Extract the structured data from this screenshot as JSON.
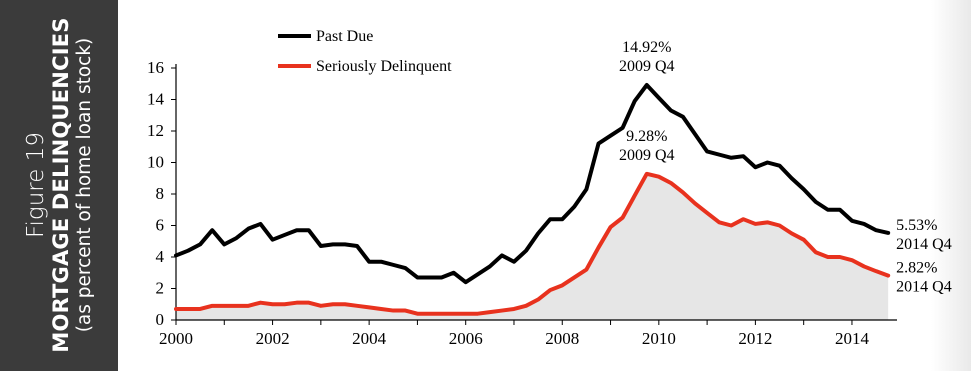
{
  "sidebar": {
    "figure_label": "Figure 19",
    "title": "MORTGAGE DELINQUENCIES",
    "subtitle": "(as percent of home loan stock)"
  },
  "colors": {
    "panel": "#3b3b3b",
    "past_due": "#000000",
    "seriously_delinquent": "#e8321e",
    "area_fill": "#e6e6e6"
  },
  "chart_data": {
    "type": "line",
    "title": "MORTGAGE DELINQUENCIES",
    "subtitle": "(as percent of home loan stock)",
    "xlabel": "",
    "ylabel": "",
    "xlim": [
      2000,
      2014.85
    ],
    "ylim": [
      0,
      16
    ],
    "x_ticks": [
      "2000",
      "2002",
      "2004",
      "2006",
      "2008",
      "2010",
      "2012",
      "2014"
    ],
    "y_ticks": [
      "0",
      "2",
      "4",
      "6",
      "8",
      "10",
      "12",
      "14",
      "16"
    ],
    "grid": false,
    "legend": "top-left",
    "area_under": "Seriously Delinquent",
    "series": [
      {
        "name": "Past Due",
        "color": "#000000",
        "x": [
          2000.0,
          2000.25,
          2000.5,
          2000.75,
          2001.0,
          2001.25,
          2001.5,
          2001.75,
          2002.0,
          2002.25,
          2002.5,
          2002.75,
          2003.0,
          2003.25,
          2003.5,
          2003.75,
          2004.0,
          2004.25,
          2004.5,
          2004.75,
          2005.0,
          2005.25,
          2005.5,
          2005.75,
          2006.0,
          2006.25,
          2006.5,
          2006.75,
          2007.0,
          2007.25,
          2007.5,
          2007.75,
          2008.0,
          2008.25,
          2008.5,
          2008.75,
          2009.0,
          2009.25,
          2009.5,
          2009.75,
          2010.0,
          2010.25,
          2010.5,
          2010.75,
          2011.0,
          2011.25,
          2011.5,
          2011.75,
          2012.0,
          2012.25,
          2012.5,
          2012.75,
          2013.0,
          2013.25,
          2013.5,
          2013.75,
          2014.0,
          2014.25,
          2014.5,
          2014.75
        ],
        "values": [
          4.1,
          4.4,
          4.8,
          5.7,
          4.8,
          5.2,
          5.8,
          6.1,
          5.1,
          5.4,
          5.7,
          5.7,
          4.7,
          4.8,
          4.8,
          4.7,
          3.7,
          3.7,
          3.5,
          3.3,
          2.7,
          2.7,
          2.7,
          3.0,
          2.4,
          2.9,
          3.4,
          4.1,
          3.7,
          4.4,
          5.5,
          6.4,
          6.4,
          7.2,
          8.3,
          11.2,
          11.7,
          12.2,
          13.9,
          14.92,
          14.1,
          13.3,
          12.9,
          11.8,
          10.7,
          10.5,
          10.3,
          10.4,
          9.7,
          10.0,
          9.8,
          9.0,
          8.3,
          7.5,
          7.0,
          7.0,
          6.3,
          6.1,
          5.7,
          5.53
        ]
      },
      {
        "name": "Seriously Delinquent",
        "color": "#e8321e",
        "x": [
          2000.0,
          2000.25,
          2000.5,
          2000.75,
          2001.0,
          2001.25,
          2001.5,
          2001.75,
          2002.0,
          2002.25,
          2002.5,
          2002.75,
          2003.0,
          2003.25,
          2003.5,
          2003.75,
          2004.0,
          2004.25,
          2004.5,
          2004.75,
          2005.0,
          2005.25,
          2005.5,
          2005.75,
          2006.0,
          2006.25,
          2006.5,
          2006.75,
          2007.0,
          2007.25,
          2007.5,
          2007.75,
          2008.0,
          2008.25,
          2008.5,
          2008.75,
          2009.0,
          2009.25,
          2009.5,
          2009.75,
          2010.0,
          2010.25,
          2010.5,
          2010.75,
          2011.0,
          2011.25,
          2011.5,
          2011.75,
          2012.0,
          2012.25,
          2012.5,
          2012.75,
          2013.0,
          2013.25,
          2013.5,
          2013.75,
          2014.0,
          2014.25,
          2014.5,
          2014.75
        ],
        "values": [
          0.7,
          0.7,
          0.7,
          0.9,
          0.9,
          0.9,
          0.9,
          1.1,
          1.0,
          1.0,
          1.1,
          1.1,
          0.9,
          1.0,
          1.0,
          0.9,
          0.8,
          0.7,
          0.6,
          0.6,
          0.4,
          0.4,
          0.4,
          0.4,
          0.4,
          0.4,
          0.5,
          0.6,
          0.7,
          0.9,
          1.3,
          1.9,
          2.2,
          2.7,
          3.2,
          4.6,
          5.9,
          6.5,
          7.9,
          9.28,
          9.1,
          8.7,
          8.1,
          7.4,
          6.8,
          6.2,
          6.0,
          6.4,
          6.1,
          6.2,
          6.0,
          5.5,
          5.1,
          4.3,
          4.0,
          4.0,
          3.8,
          3.4,
          3.1,
          2.82
        ]
      }
    ],
    "annotations": [
      {
        "series": "Past Due",
        "x": 2009.75,
        "y": 14.92,
        "lines": [
          "14.92%",
          "2009 Q4"
        ],
        "position": "above"
      },
      {
        "series": "Seriously Delinquent",
        "x": 2009.75,
        "y": 9.28,
        "lines": [
          "9.28%",
          "2009 Q4"
        ],
        "position": "above"
      },
      {
        "series": "Past Due",
        "x": 2014.75,
        "y": 5.53,
        "lines": [
          "5.53%",
          "2014 Q4"
        ],
        "position": "right"
      },
      {
        "series": "Seriously Delinquent",
        "x": 2014.75,
        "y": 2.82,
        "lines": [
          "2.82%",
          "2014 Q4"
        ],
        "position": "right"
      }
    ]
  }
}
